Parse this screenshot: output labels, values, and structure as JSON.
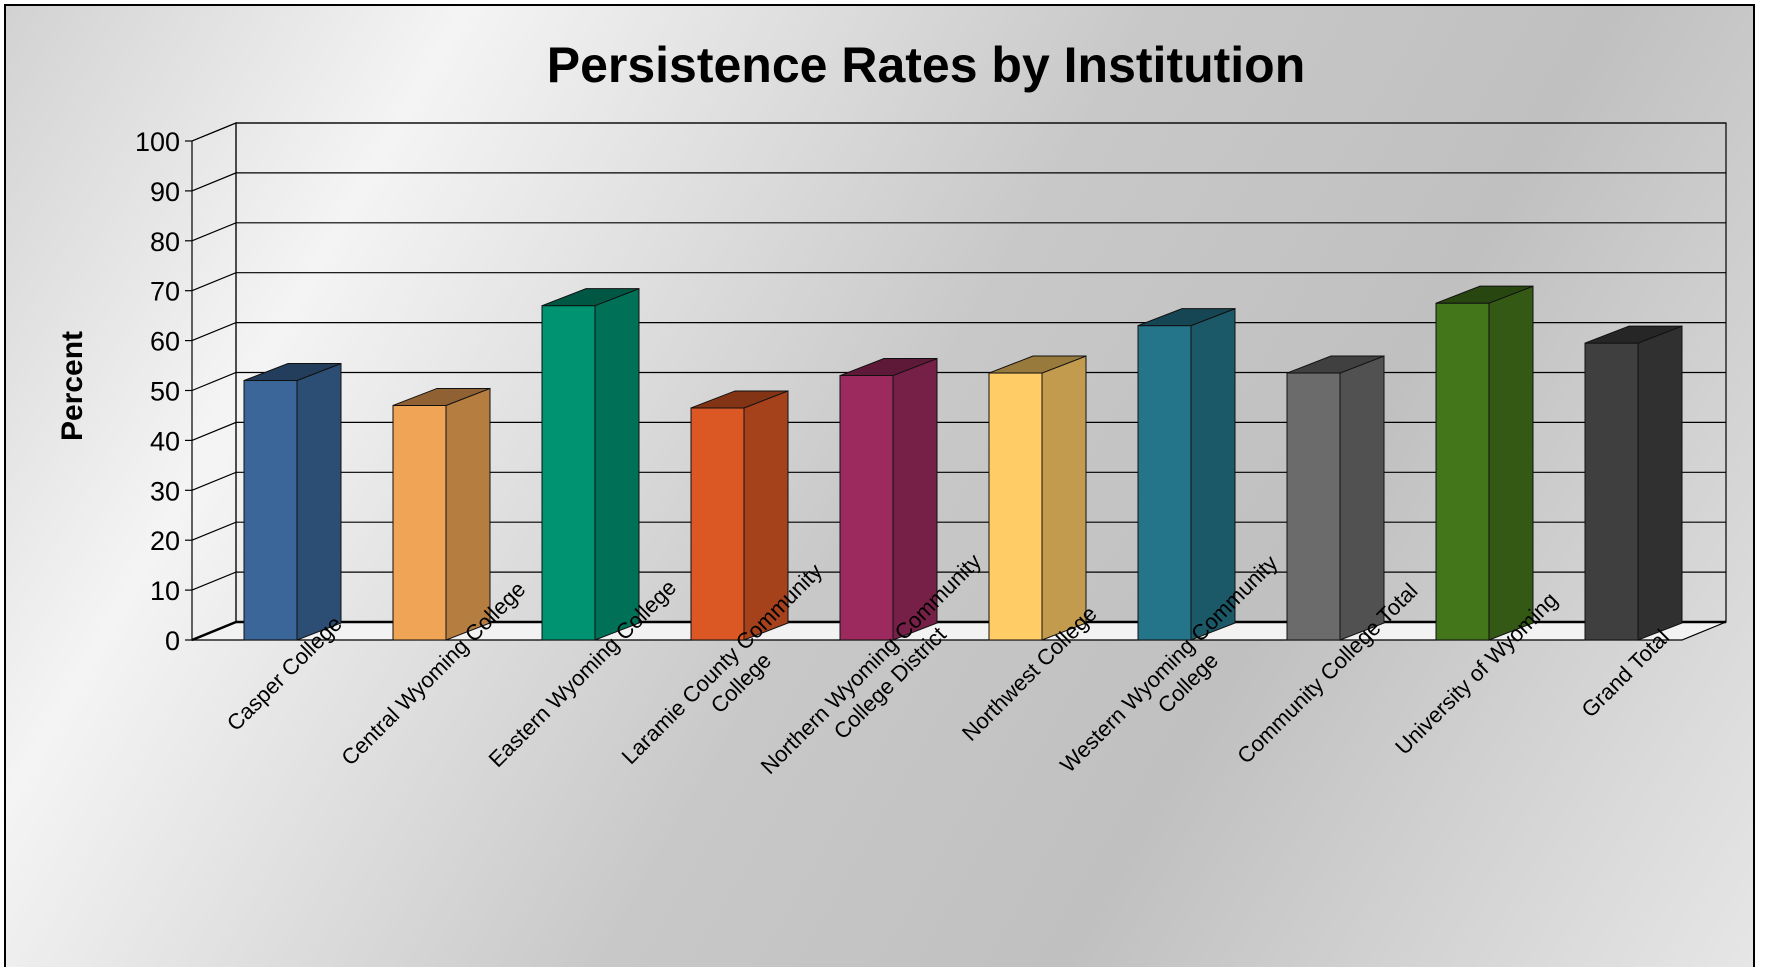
{
  "chart_data": {
    "type": "bar",
    "title": "Persistence Rates by Institution",
    "xlabel": "",
    "ylabel": "Percent",
    "ylim": [
      0,
      100
    ],
    "yticks": [
      "0",
      "10",
      "20",
      "30",
      "40",
      "50",
      "60",
      "70",
      "80",
      "90",
      "100"
    ],
    "grid": true,
    "style": "3d-column",
    "categories": [
      "Casper College",
      "Central Wyoming College",
      "Eastern Wyoming College",
      "Laramie County Community College",
      "Northern Wyoming Community College District",
      "Northwest College",
      "Western Wyoming Community College",
      "Community College Total",
      "University of Wyoming",
      "Grand Total"
    ],
    "tick_label_lines": [
      [
        "Casper College"
      ],
      [
        "Central Wyoming College"
      ],
      [
        "Eastern Wyoming College"
      ],
      [
        "Laramie County Community",
        "College"
      ],
      [
        "Northern Wyoming Community",
        "College District"
      ],
      [
        "Northwest College"
      ],
      [
        "Western Wyoming Community",
        "College"
      ],
      [
        "Community College Total"
      ],
      [
        "University of Wyoming"
      ],
      [
        "Grand Total"
      ]
    ],
    "values": [
      52,
      47,
      67,
      46.5,
      53,
      53.5,
      63,
      53.5,
      67.5,
      59.5
    ],
    "colors": [
      "#3a6699",
      "#f0a455",
      "#009372",
      "#db5723",
      "#9d2a5e",
      "#ffcc66",
      "#24758a",
      "#6b6b6b",
      "#43751a",
      "#3f3f3f"
    ]
  }
}
